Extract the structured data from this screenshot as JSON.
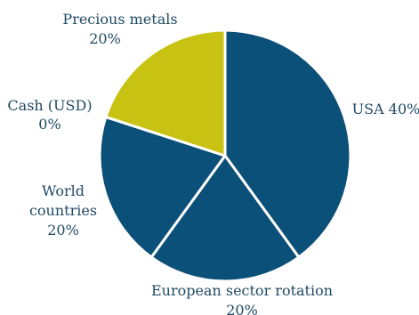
{
  "chart_data": {
    "type": "pie",
    "title": "",
    "legend": "none",
    "slices": [
      {
        "name": "USA",
        "value": 40,
        "percent_label": "40%",
        "color": "#0b5079"
      },
      {
        "name": "European sector rotation",
        "value": 20,
        "percent_label": "20%",
        "color": "#0b5079"
      },
      {
        "name": "World countries",
        "value": 20,
        "percent_label": "20%",
        "color": "#0b5079"
      },
      {
        "name": "Cash (USD)",
        "value": 0,
        "percent_label": "0%",
        "color": "#0b5079"
      },
      {
        "name": "Precious metals",
        "value": 20,
        "percent_label": "20%",
        "color": "#c8c213"
      }
    ],
    "labels": {
      "usa": {
        "line1": "USA 40%"
      },
      "europe": {
        "line1": "European sector rotation",
        "line2": "20%"
      },
      "world": {
        "line1": "World",
        "line2": "countries",
        "line3": "20%"
      },
      "cash": {
        "line1": "Cash (USD)",
        "line2": "0%"
      },
      "metals": {
        "line1": "Precious metals",
        "line2": "20%"
      }
    }
  }
}
